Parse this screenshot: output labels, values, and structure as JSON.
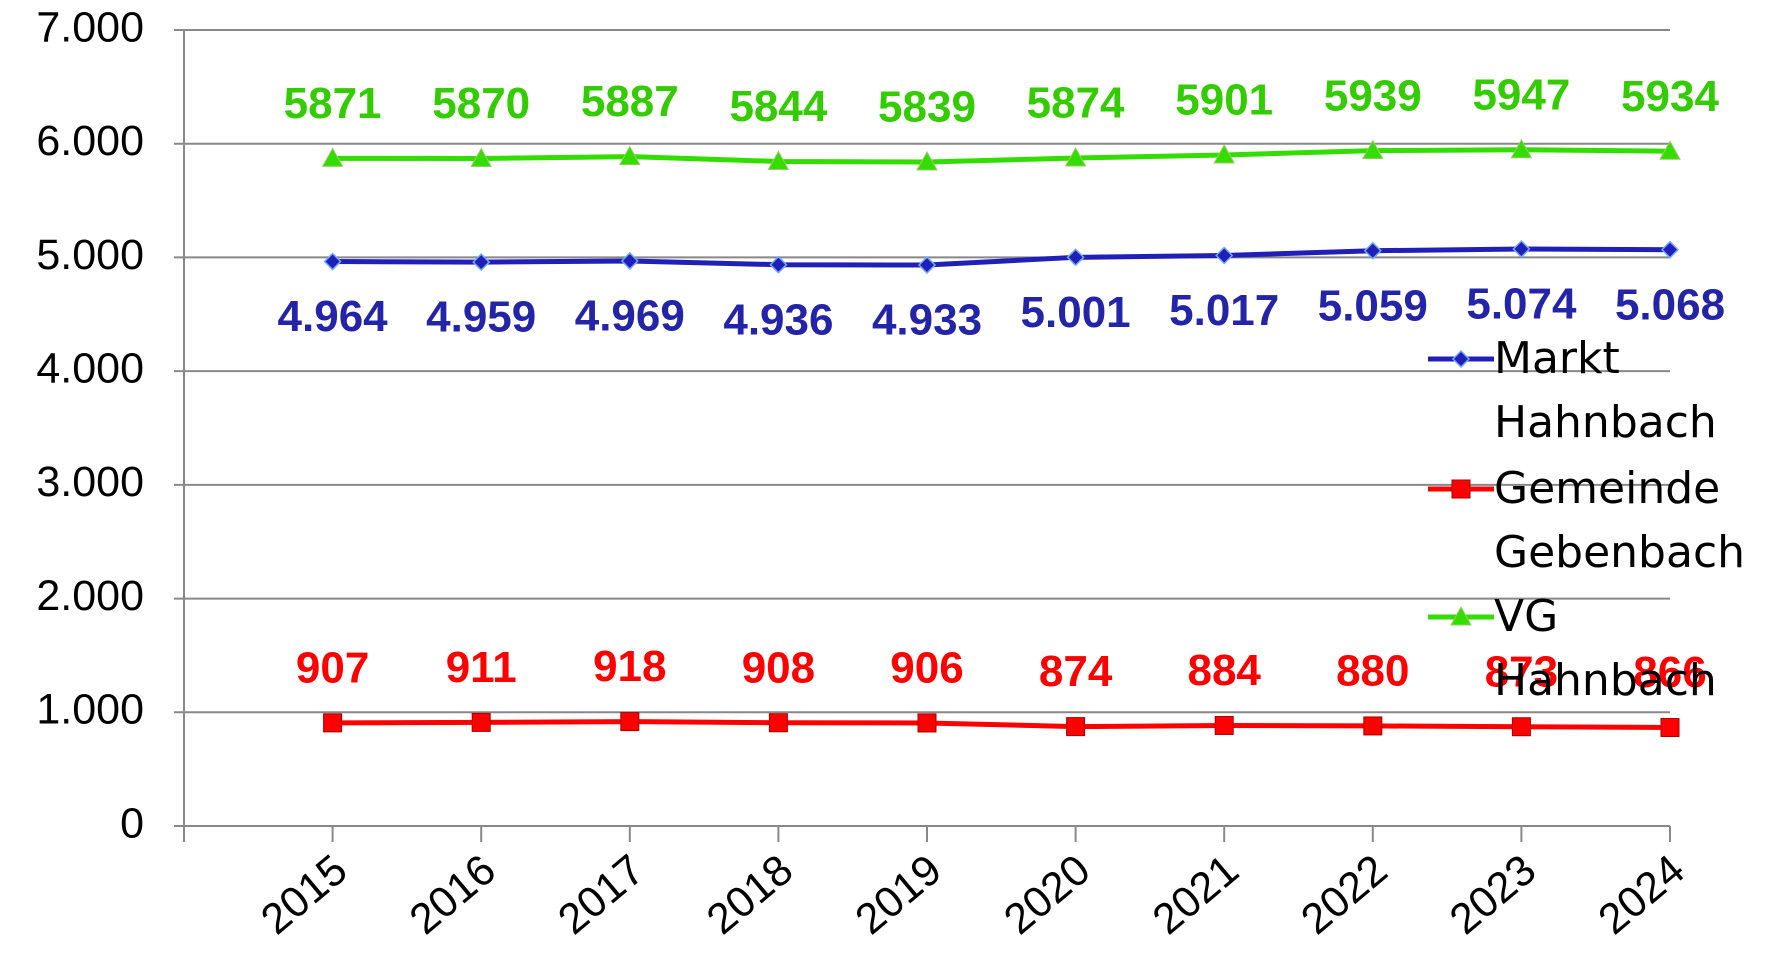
{
  "chart_data": {
    "type": "line",
    "categories": [
      "2015",
      "2016",
      "2017",
      "2018",
      "2019",
      "2020",
      "2021",
      "2022",
      "2023",
      "2024"
    ],
    "ylim": [
      0,
      7000
    ],
    "yticks": [
      0,
      {
        "value": 1000,
        "label": "1.000"
      },
      {
        "value": 2000,
        "label": "2.000"
      },
      {
        "value": 3000,
        "label": "3.000"
      },
      {
        "value": 4000,
        "label": "4.000"
      },
      {
        "value": 5000,
        "label": "5.000"
      },
      {
        "value": 6000,
        "label": "6.000"
      },
      {
        "value": 7000,
        "label": "7.000"
      }
    ],
    "grid": true,
    "legend": "right",
    "series": [
      {
        "name": "Markt Hahnbach",
        "color": "#2020b8",
        "marker": "diamond",
        "label_position": "below",
        "values": [
          4964,
          4959,
          4969,
          4936,
          4933,
          5001,
          5017,
          5059,
          5074,
          5068
        ],
        "value_labels": [
          "4.964",
          "4.959",
          "4.969",
          "4.936",
          "4.933",
          "5.001",
          "5.017",
          "5.059",
          "5.074",
          "5.068"
        ]
      },
      {
        "name": "Gemeinde Gebenbach",
        "color": "#ff0000",
        "marker": "square",
        "label_position": "above",
        "values": [
          907,
          911,
          918,
          908,
          906,
          874,
          884,
          880,
          873,
          866
        ]
      },
      {
        "name": "VG Hahnbach",
        "color": "#33dd00",
        "marker": "triangle",
        "label_position": "above",
        "values": [
          5871,
          5870,
          5887,
          5844,
          5839,
          5874,
          5901,
          5939,
          5947,
          5934
        ]
      }
    ]
  }
}
